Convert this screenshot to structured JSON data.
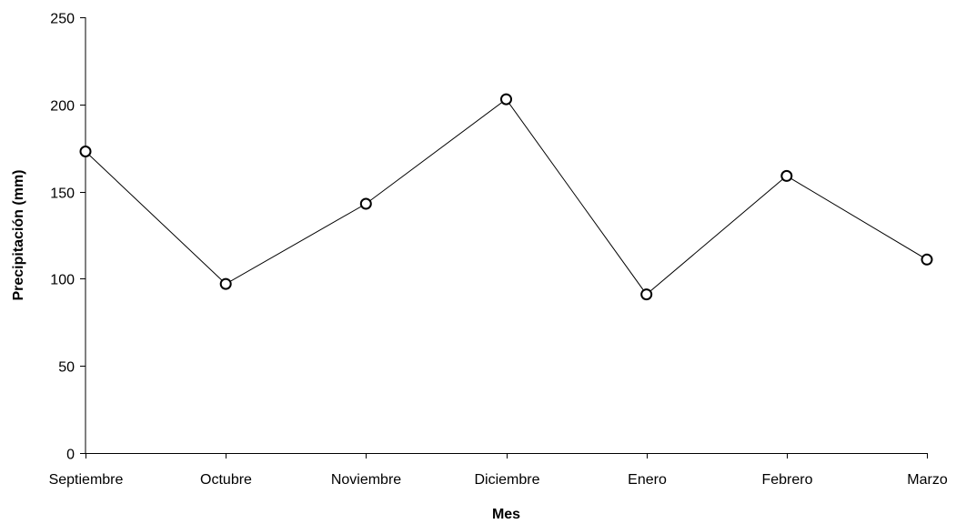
{
  "chart_data": {
    "type": "line",
    "title": "",
    "xlabel": "Mes",
    "ylabel": "Precipitación (mm)",
    "categories": [
      "Septiembre",
      "Octubre",
      "Noviembre",
      "Diciembre",
      "Enero",
      "Febrero",
      "Marzo"
    ],
    "series": [
      {
        "values": [
          173,
          97,
          143,
          203,
          91,
          159,
          111
        ],
        "color": "#000000",
        "marker": "open-circle"
      }
    ],
    "ylim": [
      0,
      250
    ],
    "yticks": [
      0,
      50,
      100,
      150,
      200,
      250
    ],
    "grid": false,
    "legend": "none"
  }
}
